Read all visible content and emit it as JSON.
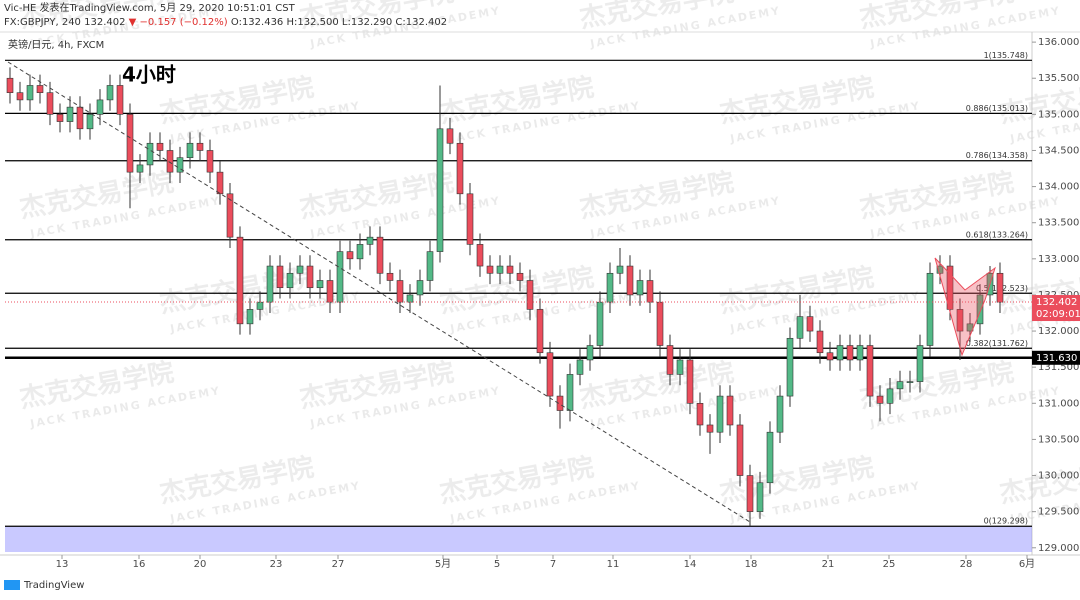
{
  "header": {
    "line1": "Vic-HE 发表在TradingView.com, 5月 29, 2020 10:51:01 CST",
    "symbol": "FX:GBPJPY, 240",
    "price": "132.402",
    "change": "▼ −0.157 (−0.12%)",
    "o": "O:132.436",
    "h": "H:132.500",
    "l": "L:132.290",
    "c": "C:132.402",
    "legend": "英镑/日元, 4h, FXCM",
    "note": "4小时"
  },
  "watermark": {
    "cn": "杰克交易学院",
    "en": "JACK TRADING ACADEMY"
  },
  "footer": {
    "logo": "TradingView"
  },
  "chart_data": {
    "type": "candlestick",
    "up_color": "#53b987",
    "down_color": "#eb4d5c",
    "xlim": [
      -0.5,
      102.2
    ],
    "ylim": [
      128.9,
      136.14
    ],
    "xticks": [
      {
        "value": 5.2,
        "label": "13"
      },
      {
        "value": 12.9,
        "label": "16"
      },
      {
        "value": 19,
        "label": "20"
      },
      {
        "value": 26.6,
        "label": "23"
      },
      {
        "value": 32.8,
        "label": "27"
      },
      {
        "value": 43.3,
        "label": "5月"
      },
      {
        "value": 48.7,
        "label": "5"
      },
      {
        "value": 54.3,
        "label": "7"
      },
      {
        "value": 60.3,
        "label": "11"
      },
      {
        "value": 68,
        "label": "14"
      },
      {
        "value": 74.1,
        "label": "18"
      },
      {
        "value": 81.8,
        "label": "21"
      },
      {
        "value": 87.9,
        "label": "25"
      },
      {
        "value": 95.6,
        "label": "28"
      },
      {
        "value": 101.7,
        "label": "6月"
      }
    ],
    "yticks": [
      {
        "value": 129,
        "label": "129.000"
      },
      {
        "value": 129.5,
        "label": "129.500"
      },
      {
        "value": 130,
        "label": "130.000"
      },
      {
        "value": 130.5,
        "label": "130.500"
      },
      {
        "value": 131,
        "label": "131.000"
      },
      {
        "value": 131.5,
        "label": "131.500"
      },
      {
        "value": 132,
        "label": "132.000"
      },
      {
        "value": 132.5,
        "label": "132.500"
      },
      {
        "value": 133,
        "label": "133.000"
      },
      {
        "value": 133.5,
        "label": "133.500"
      },
      {
        "value": 134,
        "label": "134.000"
      },
      {
        "value": 134.5,
        "label": "134.500"
      },
      {
        "value": 135,
        "label": "135.000"
      },
      {
        "value": 135.5,
        "label": "135.500"
      },
      {
        "value": 136,
        "label": "136.000"
      }
    ],
    "fib_levels": [
      {
        "value": 135.748,
        "label": "1(135.748)"
      },
      {
        "value": 135.013,
        "label": "0.886(135.013)"
      },
      {
        "value": 134.358,
        "label": "0.786(134.358)"
      },
      {
        "value": 133.264,
        "label": "0.618(133.264)"
      },
      {
        "value": 132.523,
        "label": "0.5(132.523)"
      },
      {
        "value": 131.762,
        "label": "0.382(131.762)"
      },
      {
        "value": 129.298,
        "label": "0(129.298)"
      }
    ],
    "support": {
      "value": 131.63,
      "label": "131.630"
    },
    "last_price": {
      "value": 132.402,
      "label": "132.402"
    },
    "countdown": "02:09:01",
    "open": [
      135.5,
      135.3,
      135.2,
      135.4,
      135.3,
      135.0,
      134.9,
      135.1,
      134.8,
      135.0,
      135.2,
      135.4,
      135.0,
      134.2,
      134.3,
      134.6,
      134.5,
      134.2,
      134.4,
      134.6,
      134.5,
      134.2,
      133.9,
      133.3,
      132.1,
      132.3,
      132.4,
      132.9,
      132.6,
      132.8,
      132.9,
      132.6,
      132.7,
      132.4,
      133.1,
      133.0,
      133.2,
      133.3,
      132.8,
      132.7,
      132.4,
      132.5,
      132.7,
      133.1,
      134.8,
      134.6,
      133.9,
      133.2,
      132.9,
      132.8,
      132.9,
      132.8,
      132.7,
      132.3,
      131.7,
      131.1,
      130.9,
      131.4,
      131.6,
      131.8,
      132.4,
      132.8,
      132.9,
      132.5,
      132.7,
      132.4,
      131.8,
      131.4,
      131.6,
      131.0,
      130.7,
      130.6,
      131.1,
      130.7,
      130.0,
      129.5,
      129.9,
      130.6,
      131.1,
      131.9,
      132.2,
      132.0,
      131.7,
      131.6,
      131.8,
      131.6,
      131.8,
      131.1,
      131.0,
      131.2,
      131.3,
      131.3,
      131.8,
      132.8,
      132.9,
      132.3,
      132.0,
      132.1,
      132.5,
      132.8
    ],
    "high": [
      135.65,
      135.45,
      135.55,
      135.55,
      135.45,
      135.15,
      135.25,
      135.25,
      135.15,
      135.35,
      135.55,
      135.55,
      135.15,
      134.45,
      134.75,
      134.75,
      134.65,
      134.55,
      134.75,
      134.75,
      134.65,
      134.35,
      134.05,
      133.45,
      132.45,
      132.55,
      133.05,
      133.05,
      132.95,
      133.05,
      133.05,
      132.85,
      132.85,
      133.25,
      133.25,
      133.35,
      133.45,
      133.45,
      132.95,
      132.85,
      132.65,
      132.85,
      133.25,
      135.4,
      134.95,
      134.75,
      134.05,
      133.35,
      133.05,
      133.05,
      133.05,
      132.95,
      132.85,
      132.45,
      131.85,
      131.25,
      131.55,
      131.75,
      131.95,
      132.55,
      132.95,
      133.15,
      133.05,
      132.85,
      132.85,
      132.55,
      131.95,
      131.75,
      131.75,
      131.15,
      130.85,
      131.25,
      131.25,
      130.85,
      130.15,
      130.05,
      130.75,
      131.25,
      132.05,
      132.5,
      132.35,
      132.15,
      131.85,
      131.95,
      131.95,
      131.95,
      131.95,
      131.25,
      131.35,
      131.45,
      131.45,
      131.95,
      132.95,
      133.05,
      133.05,
      132.45,
      132.25,
      132.65,
      132.9,
      132.95
    ],
    "low": [
      135.15,
      135.05,
      135.05,
      135.15,
      134.85,
      134.75,
      134.75,
      134.65,
      134.65,
      134.85,
      135.05,
      134.85,
      133.7,
      134.05,
      134.15,
      134.35,
      134.05,
      134.05,
      134.25,
      134.35,
      134.05,
      133.75,
      133.15,
      131.95,
      131.95,
      132.15,
      132.25,
      132.45,
      132.45,
      132.65,
      132.45,
      132.45,
      132.25,
      132.25,
      132.85,
      132.85,
      133.05,
      132.65,
      132.55,
      132.25,
      132.25,
      132.35,
      132.55,
      132.95,
      134.45,
      133.75,
      133.05,
      132.75,
      132.65,
      132.65,
      132.65,
      132.55,
      132.15,
      131.55,
      130.95,
      130.65,
      130.75,
      131.25,
      131.45,
      131.65,
      132.25,
      132.65,
      132.35,
      132.35,
      132.25,
      131.65,
      131.25,
      131.25,
      130.85,
      130.55,
      130.3,
      130.45,
      130.55,
      129.85,
      129.3,
      129.4,
      129.75,
      130.45,
      130.95,
      131.75,
      131.85,
      131.55,
      131.45,
      131.45,
      131.45,
      131.45,
      130.95,
      130.75,
      130.85,
      131.05,
      131.15,
      131.15,
      131.65,
      132.65,
      132.15,
      131.6,
      131.85,
      131.95,
      132.35,
      132.25
    ],
    "close": [
      135.3,
      135.2,
      135.4,
      135.3,
      135.0,
      134.9,
      135.1,
      134.8,
      135.0,
      135.2,
      135.4,
      135.0,
      134.2,
      134.3,
      134.6,
      134.5,
      134.2,
      134.4,
      134.6,
      134.5,
      134.2,
      133.9,
      133.3,
      132.1,
      132.3,
      132.4,
      132.9,
      132.6,
      132.8,
      132.9,
      132.6,
      132.7,
      132.4,
      133.1,
      133.0,
      133.2,
      133.3,
      132.8,
      132.7,
      132.4,
      132.5,
      132.7,
      133.1,
      134.8,
      134.6,
      133.9,
      133.2,
      132.9,
      132.8,
      132.9,
      132.8,
      132.7,
      132.3,
      131.7,
      131.1,
      130.9,
      131.4,
      131.6,
      131.8,
      132.4,
      132.8,
      132.9,
      132.5,
      132.7,
      132.4,
      131.8,
      131.4,
      131.6,
      131.0,
      130.7,
      130.6,
      131.1,
      130.7,
      130.0,
      129.5,
      129.9,
      130.6,
      131.1,
      131.9,
      132.2,
      132.0,
      131.7,
      131.6,
      131.8,
      131.6,
      131.8,
      131.1,
      131.0,
      131.2,
      131.3,
      131.3,
      131.8,
      132.8,
      132.9,
      132.3,
      132.0,
      132.1,
      132.5,
      132.8,
      132.4
    ]
  }
}
